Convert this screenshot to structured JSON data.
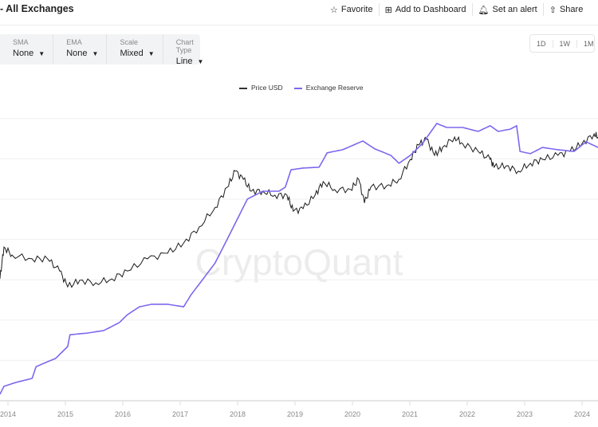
{
  "header": {
    "title": "- All Exchanges",
    "actions": [
      {
        "icon": "star-icon",
        "label": "Favorite"
      },
      {
        "icon": "dashboard-add-icon",
        "label": "Add to Dashboard"
      },
      {
        "icon": "bell-icon",
        "label": "Set an alert"
      },
      {
        "icon": "share-icon",
        "label": "Share"
      }
    ]
  },
  "controls": [
    {
      "label": "SMA",
      "value": "None"
    },
    {
      "label": "EMA",
      "value": "None"
    },
    {
      "label": "Scale",
      "value": "Mixed"
    },
    {
      "label": "Chart Type",
      "value": "Line"
    }
  ],
  "periods": [
    "1D",
    "1W",
    "1M"
  ],
  "watermark": "CryptoQuant",
  "colors": {
    "price": "#1a1a1a",
    "reserve": "#7b68ee"
  },
  "chart_data": {
    "type": "line",
    "title": "",
    "xlabel": "",
    "ylabel": "",
    "grid": true,
    "legend": "top-center",
    "x_ticks": [
      "2014",
      "2015",
      "2016",
      "2017",
      "2018",
      "2019",
      "2020",
      "2021",
      "2022",
      "2023",
      "2024"
    ],
    "y_note_scale": "relative (no y-axis labels shown)",
    "series": [
      {
        "name": "Price USD",
        "points": [
          [
            2013.86,
            43.2
          ],
          [
            2013.93,
            54.5
          ],
          [
            2014.07,
            51.7
          ],
          [
            2014.42,
            50.3
          ],
          [
            2014.69,
            50.3
          ],
          [
            2014.9,
            46
          ],
          [
            2015.04,
            40.4
          ],
          [
            2015.25,
            42.7
          ],
          [
            2015.53,
            41.8
          ],
          [
            2015.81,
            43.2
          ],
          [
            2016.08,
            46
          ],
          [
            2016.43,
            50.3
          ],
          [
            2016.78,
            52.3
          ],
          [
            2017.06,
            55.9
          ],
          [
            2017.33,
            61.6
          ],
          [
            2017.61,
            68.6
          ],
          [
            2017.82,
            75.7
          ],
          [
            2017.96,
            81.4
          ],
          [
            2018.1,
            78.5
          ],
          [
            2018.24,
            74.3
          ],
          [
            2018.44,
            74.3
          ],
          [
            2018.65,
            72.9
          ],
          [
            2018.86,
            72.9
          ],
          [
            2018.97,
            67.2
          ],
          [
            2019.14,
            68.1
          ],
          [
            2019.35,
            72.9
          ],
          [
            2019.49,
            77.7
          ],
          [
            2019.69,
            74.9
          ],
          [
            2019.97,
            74.9
          ],
          [
            2020.11,
            78.5
          ],
          [
            2020.21,
            70.1
          ],
          [
            2020.32,
            75.7
          ],
          [
            2020.6,
            76.3
          ],
          [
            2020.81,
            78.5
          ],
          [
            2021.01,
            85.6
          ],
          [
            2021.15,
            90.7
          ],
          [
            2021.29,
            92.7
          ],
          [
            2021.43,
            87
          ],
          [
            2021.57,
            89.8
          ],
          [
            2021.78,
            93.5
          ],
          [
            2021.92,
            91.2
          ],
          [
            2022.19,
            88.4
          ],
          [
            2022.4,
            85.6
          ],
          [
            2022.47,
            82.8
          ],
          [
            2022.68,
            83.3
          ],
          [
            2022.89,
            81.4
          ],
          [
            2023.1,
            84.2
          ],
          [
            2023.31,
            85.6
          ],
          [
            2023.58,
            87
          ],
          [
            2023.79,
            88.4
          ],
          [
            2024.0,
            91.2
          ],
          [
            2024.21,
            94.6
          ],
          [
            2024.28,
            93.5
          ]
        ]
      },
      {
        "name": "Exchange Reserve",
        "points": [
          [
            2013.86,
            2.3
          ],
          [
            2013.93,
            5.1
          ],
          [
            2014.14,
            6.5
          ],
          [
            2014.42,
            7.9
          ],
          [
            2014.49,
            12.1
          ],
          [
            2014.83,
            15
          ],
          [
            2015.04,
            19.2
          ],
          [
            2015.08,
            23.4
          ],
          [
            2015.39,
            24
          ],
          [
            2015.67,
            24.9
          ],
          [
            2015.94,
            27.7
          ],
          [
            2016.08,
            30.5
          ],
          [
            2016.29,
            33.3
          ],
          [
            2016.5,
            34.2
          ],
          [
            2016.78,
            34.2
          ],
          [
            2017.06,
            33.3
          ],
          [
            2017.19,
            37.6
          ],
          [
            2017.4,
            43.2
          ],
          [
            2017.61,
            48.9
          ],
          [
            2017.82,
            57.3
          ],
          [
            2018.03,
            65.8
          ],
          [
            2018.17,
            71.5
          ],
          [
            2018.44,
            74.3
          ],
          [
            2018.72,
            74.3
          ],
          [
            2018.83,
            75.7
          ],
          [
            2018.93,
            81.9
          ],
          [
            2019.14,
            82.5
          ],
          [
            2019.42,
            82.8
          ],
          [
            2019.56,
            87.9
          ],
          [
            2019.83,
            89
          ],
          [
            2020.18,
            92.1
          ],
          [
            2020.39,
            89.3
          ],
          [
            2020.67,
            87
          ],
          [
            2020.81,
            84.2
          ],
          [
            2021.01,
            87
          ],
          [
            2021.22,
            91.2
          ],
          [
            2021.47,
            98.3
          ],
          [
            2021.64,
            96.9
          ],
          [
            2021.92,
            96.9
          ],
          [
            2022.19,
            95.5
          ],
          [
            2022.4,
            97.5
          ],
          [
            2022.54,
            95.5
          ],
          [
            2022.75,
            96.3
          ],
          [
            2022.86,
            97.5
          ],
          [
            2022.92,
            88.4
          ],
          [
            2023.1,
            87.6
          ],
          [
            2023.31,
            89.8
          ],
          [
            2023.58,
            89
          ],
          [
            2023.86,
            88.4
          ],
          [
            2024.07,
            91.8
          ],
          [
            2024.28,
            89.8
          ]
        ]
      }
    ]
  }
}
